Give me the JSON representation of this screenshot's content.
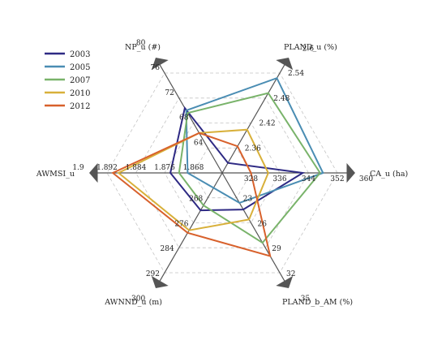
{
  "chart_data": {
    "type": "radar",
    "title": "",
    "grid": true,
    "legend_position": "top-left",
    "axes": [
      {
        "label": "CA_u (ha)",
        "ticks": [
          "328",
          "336",
          "344",
          "352",
          "360"
        ],
        "range": [
          320,
          360
        ]
      },
      {
        "label": "PLAND_u (%)",
        "ticks": [
          "2.36",
          "2.42",
          "2.48",
          "2.54",
          "2.6"
        ],
        "range": [
          2.3,
          2.6
        ]
      },
      {
        "label": "NP_u (#)",
        "ticks": [
          "64",
          "68",
          "72",
          "76",
          "80"
        ],
        "range": [
          60,
          80
        ]
      },
      {
        "label": "AWMSI_u",
        "ticks": [
          "1.868",
          "1.876",
          "1.884",
          "1.892",
          "1.9"
        ],
        "range": [
          1.86,
          1.9
        ]
      },
      {
        "label": "AWNND_u (m)",
        "ticks": [
          "268",
          "276",
          "284",
          "292",
          "300"
        ],
        "range": [
          260,
          300
        ]
      },
      {
        "label": "PLAND_b_AM (%)",
        "ticks": [
          "23",
          "26",
          "29",
          "32",
          "35"
        ],
        "range": [
          20,
          35
        ]
      }
    ],
    "series": [
      {
        "name": "2003",
        "color": "#2e2a84",
        "values": [
          348,
          2.33,
          73,
          1.878,
          275,
          25.5
        ]
      },
      {
        "name": "2005",
        "color": "#4a8db3",
        "values": [
          355,
          2.585,
          72.5,
          1.872,
          266,
          24.5
        ]
      },
      {
        "name": "2007",
        "color": "#79b36a",
        "values": [
          354,
          2.54,
          72,
          1.875,
          273,
          30.5
        ]
      },
      {
        "name": "2010",
        "color": "#d8b03a",
        "values": [
          336,
          2.43,
          68,
          1.896,
          283,
          27
        ]
      },
      {
        "name": "2012",
        "color": "#d8612c",
        "values": [
          330,
          2.38,
          68,
          1.898,
          284,
          32.5
        ]
      }
    ]
  }
}
